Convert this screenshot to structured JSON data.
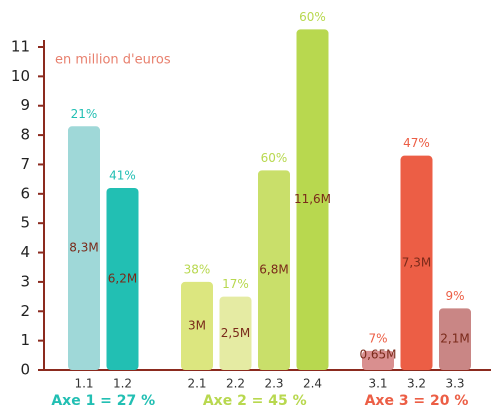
{
  "chart_data": {
    "type": "bar",
    "annotation": "en million d'euros",
    "ylim": [
      0,
      11
    ],
    "yticks": [
      0,
      1,
      2,
      3,
      4,
      5,
      6,
      7,
      8,
      9,
      10,
      11
    ],
    "groups": [
      {
        "label": "Axe 1 = 27 %",
        "color": "#22bfb3",
        "categories": [
          "1.1",
          "1.2"
        ],
        "values": [
          8.3,
          6.2
        ],
        "value_labels": [
          "8,3M",
          "6,2M"
        ],
        "share_labels": [
          "21%",
          "41%"
        ],
        "colors": [
          "#9fd8d8",
          "#22bfb3"
        ]
      },
      {
        "label": "Axe 2 = 45 %",
        "color": "#b8d84f",
        "categories": [
          "2.1",
          "2.2",
          "2.3",
          "2.4"
        ],
        "values": [
          3,
          2.5,
          6.8,
          11.6
        ],
        "value_labels": [
          "3M",
          "2,5M",
          "6,8M",
          "11,6M"
        ],
        "share_labels": [
          "38%",
          "17%",
          "60%",
          "60%"
        ],
        "colors": [
          "#dce67f",
          "#e5eba3",
          "#c9df6a",
          "#b8d84f"
        ]
      },
      {
        "label": "Axe 3 = 20 %",
        "color": "#ec5e45",
        "categories": [
          "3.1",
          "3.2",
          "3.3"
        ],
        "values": [
          0.65,
          7.3,
          2.1
        ],
        "value_labels": [
          "0,65M",
          "7,3M",
          "2,1M"
        ],
        "share_labels": [
          "7%",
          "47%",
          "9%"
        ],
        "colors": [
          "#d98f8f",
          "#ec5e45",
          "#c98685"
        ]
      }
    ]
  }
}
